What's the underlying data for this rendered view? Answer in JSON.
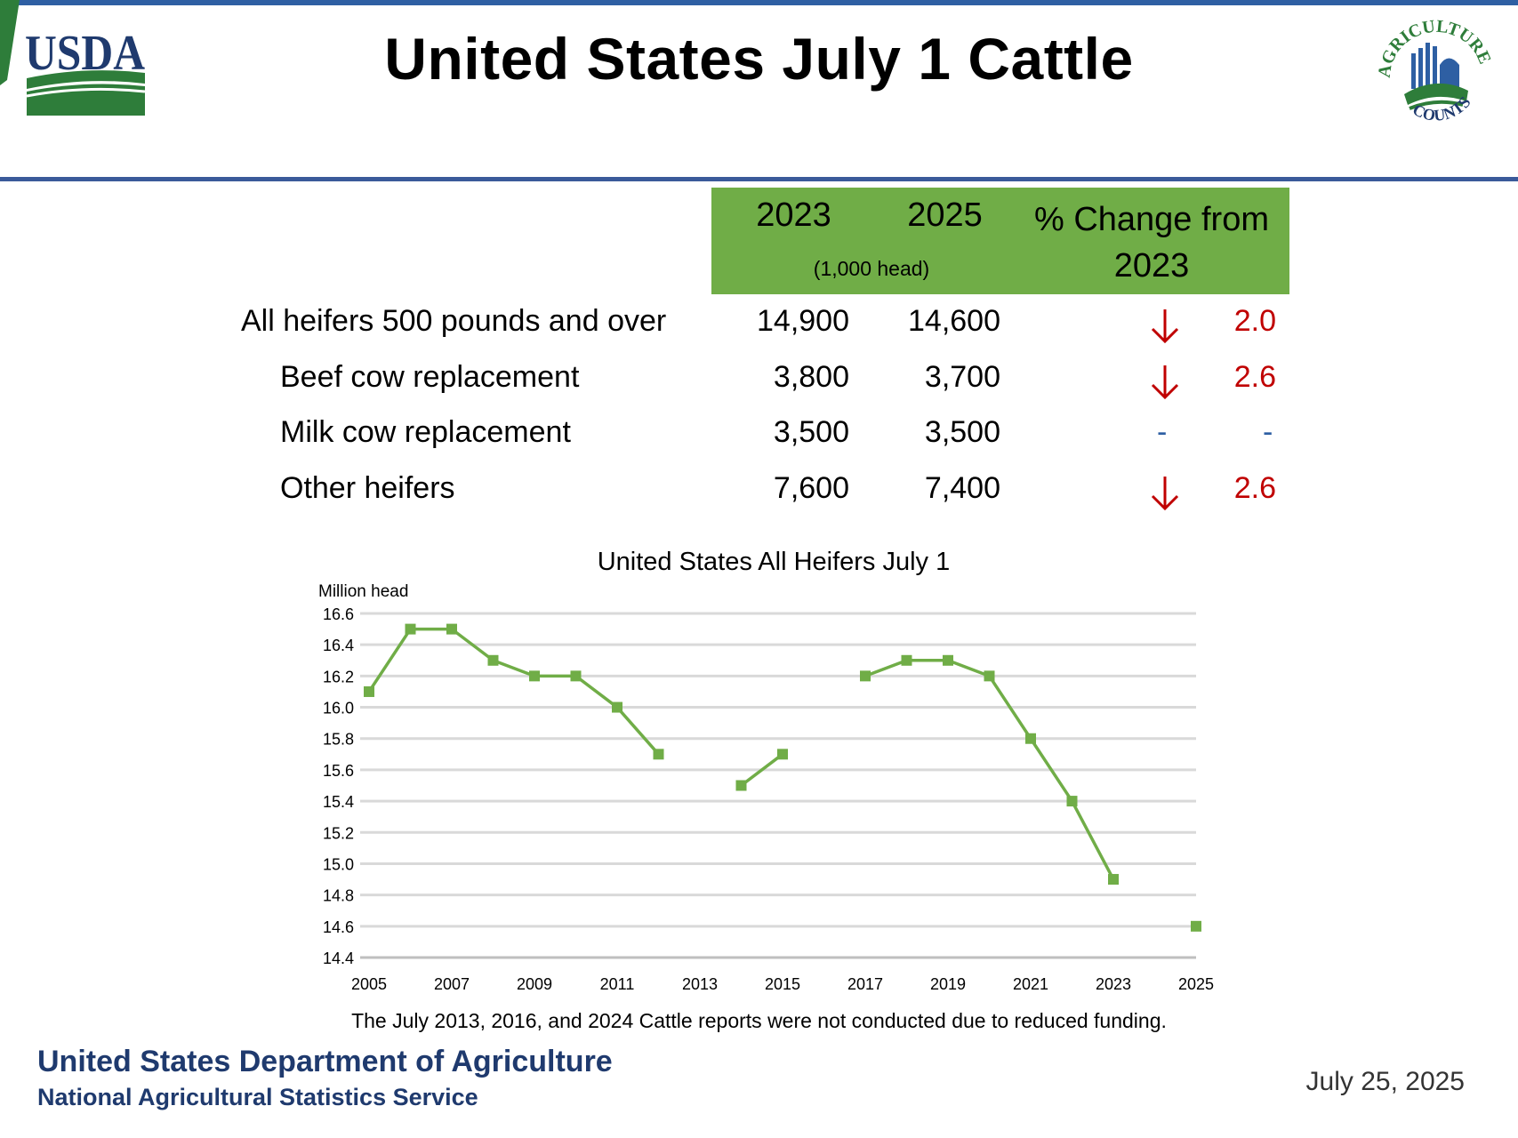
{
  "header": {
    "title": "United States July 1 Cattle",
    "usda_logo_text": "USDA",
    "ag_logo_top_text": "AGRICULTURE",
    "ag_logo_bottom_text": "COUNTS"
  },
  "table": {
    "col_2023": "2023",
    "col_2025": "2025",
    "unit": "(1,000 head)",
    "col_pct_line1": "% Change from",
    "col_pct_line2": "2023",
    "rows": [
      {
        "label": "All heifers 500 pounds and over",
        "v2023": "14,900",
        "v2025": "14,600",
        "direction": "down",
        "pct": "2.0"
      },
      {
        "label": "Beef cow replacement",
        "v2023": "3,800",
        "v2025": "3,700",
        "direction": "down",
        "pct": "2.6"
      },
      {
        "label": "Milk cow replacement",
        "v2023": "3,500",
        "v2025": "3,500",
        "direction": "none",
        "pct": "-",
        "arrow_placeholder": "-"
      },
      {
        "label": "Other heifers",
        "v2023": "7,600",
        "v2025": "7,400",
        "direction": "down",
        "pct": "2.6"
      }
    ]
  },
  "chart_data": {
    "type": "line",
    "title": "United States All Heifers July 1",
    "ylabel": "Million head",
    "xlabel": "",
    "ylim": [
      14.4,
      16.6
    ],
    "y_ticks": [
      "16.6",
      "16.4",
      "16.2",
      "16.0",
      "15.8",
      "15.6",
      "15.4",
      "15.2",
      "15.0",
      "14.8",
      "14.6",
      "14.4"
    ],
    "x_ticks": [
      "2005",
      "2007",
      "2009",
      "2011",
      "2013",
      "2015",
      "2017",
      "2019",
      "2021",
      "2023",
      "2025"
    ],
    "x": [
      2005,
      2006,
      2007,
      2008,
      2009,
      2010,
      2011,
      2012,
      2013,
      2014,
      2015,
      2016,
      2017,
      2018,
      2019,
      2020,
      2021,
      2022,
      2023,
      2024,
      2025
    ],
    "series": [
      {
        "values": [
          16.1,
          16.5,
          16.5,
          16.3,
          16.2,
          16.2,
          16.0,
          15.7,
          null,
          15.5,
          15.7,
          null,
          16.2,
          16.3,
          16.3,
          16.2,
          15.8,
          15.4,
          14.9,
          null,
          14.6
        ]
      }
    ],
    "grid": true,
    "color": "#70ad47"
  },
  "note": "The July 2013, 2016, and 2024 Cattle reports were not conducted due to reduced funding.",
  "footer": {
    "dept": "United States Department of Agriculture",
    "service": "National Agricultural Statistics Service",
    "date": "July 25, 2025"
  },
  "colors": {
    "accent_green": "#70ad47",
    "header_rule": "#3a5a9a",
    "footer_blue": "#1f3a6e",
    "decrease_red": "#c00000",
    "usda_blue": "#1f3a6e",
    "usda_green": "#2e7d3a"
  }
}
